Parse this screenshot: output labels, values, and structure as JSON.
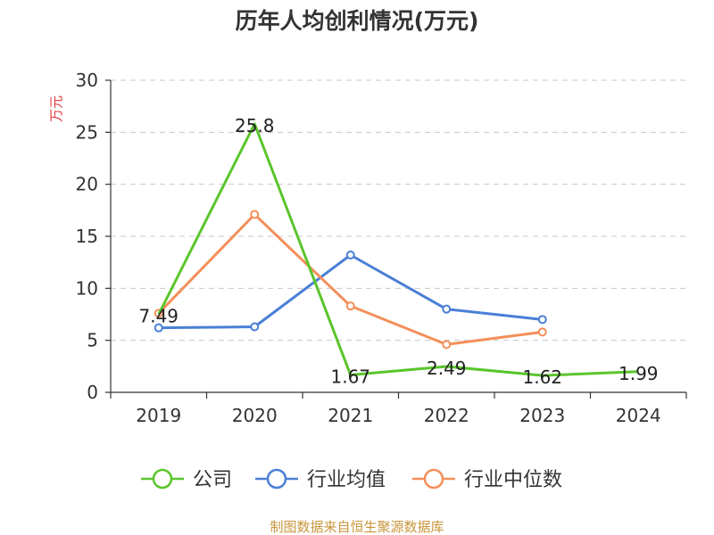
{
  "chart_data": {
    "type": "line",
    "title": "历年人均创利情况(万元)",
    "ylabel": "万元",
    "categories": [
      "2019",
      "2020",
      "2021",
      "2022",
      "2023",
      "2024"
    ],
    "ylim": [
      0,
      30
    ],
    "yticks": [
      0,
      5,
      10,
      15,
      20,
      25,
      30
    ],
    "grid": true,
    "legend_position": "bottom",
    "series": [
      {
        "name": "公司",
        "color": "#5ac52c",
        "values": [
          7.49,
          25.8,
          1.67,
          2.49,
          1.62,
          1.99
        ],
        "labels": [
          "7.49",
          "25.8",
          "1.67",
          "2.49",
          "1.62",
          "1.99"
        ]
      },
      {
        "name": "行业均值",
        "color": "#4a7fd6",
        "values": [
          6.2,
          6.3,
          13.2,
          8.0,
          7.0,
          null
        ]
      },
      {
        "name": "行业中位数",
        "color": "#f48f5a",
        "values": [
          7.6,
          17.1,
          8.3,
          4.6,
          5.8,
          null
        ]
      }
    ]
  },
  "source": "制图数据来自恒生聚源数据库",
  "colors": {
    "ylabel": "#e0383e",
    "source": "#c8963c"
  }
}
